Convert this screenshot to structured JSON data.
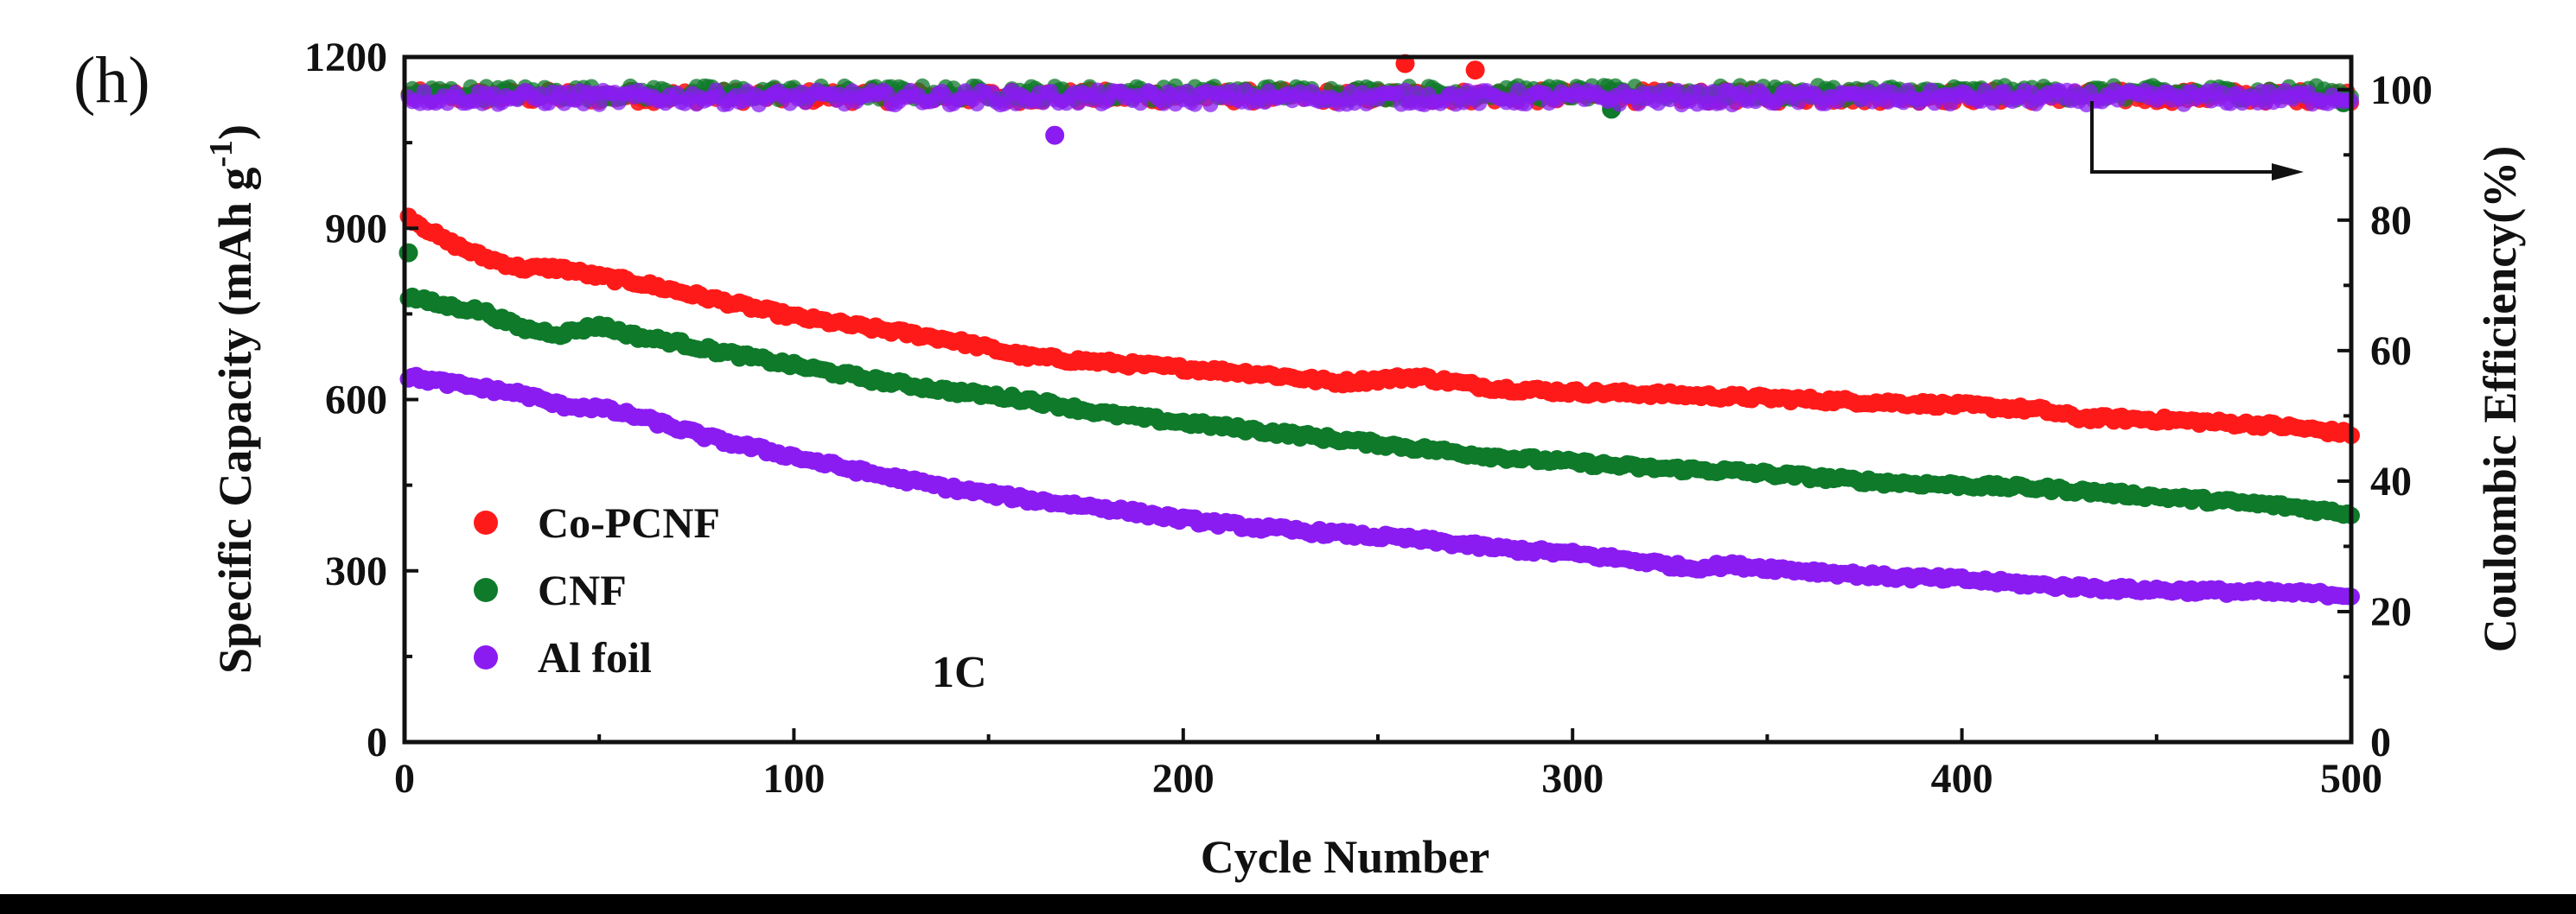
{
  "chart_data": {
    "type": "scatter",
    "panel_label": "(h)",
    "xlabel": "Cycle Number",
    "ylabel_left": "Specific Capacity (mAh g",
    "ylabel_left_sup": "-1",
    "ylabel_left_close": ")",
    "ylabel_right": "Coulombic Efficiency(%)",
    "annotation": "1C",
    "xlim": [
      0,
      500
    ],
    "ylim_left": [
      0,
      1200
    ],
    "ylim_right": [
      0,
      105
    ],
    "x_ticks": [
      "0",
      "100",
      "200",
      "300",
      "400",
      "500"
    ],
    "y_left_ticks": [
      "0",
      "300",
      "600",
      "900",
      "1200"
    ],
    "y_right_ticks": [
      "0",
      "20",
      "40",
      "60",
      "80",
      "100"
    ],
    "legend_position": "bottom-left",
    "grid": false,
    "series": [
      {
        "name": "Co-PCNF",
        "color": "#ff1a1a",
        "capacity": {
          "x": [
            1,
            10,
            20,
            30,
            40,
            50,
            60,
            70,
            80,
            90,
            100,
            120,
            140,
            150,
            160,
            180,
            200,
            220,
            240,
            260,
            280,
            300,
            320,
            340,
            360,
            380,
            400,
            420,
            430,
            450,
            480,
            500
          ],
          "y": [
            920,
            880,
            850,
            830,
            830,
            815,
            805,
            790,
            775,
            760,
            745,
            725,
            705,
            690,
            675,
            665,
            655,
            645,
            630,
            640,
            620,
            613,
            610,
            605,
            600,
            595,
            590,
            582,
            568,
            565,
            555,
            540
          ]
        },
        "efficiency": {
          "mean": 99,
          "outliers": [
            [
              257,
              104
            ],
            [
              275,
              103
            ]
          ]
        }
      },
      {
        "name": "CNF",
        "color": "#0e7a2a",
        "capacity": {
          "x": [
            1,
            10,
            20,
            30,
            40,
            50,
            60,
            70,
            80,
            100,
            120,
            140,
            160,
            180,
            200,
            220,
            240,
            260,
            280,
            300,
            320,
            340,
            360,
            380,
            400,
            420,
            440,
            460,
            480,
            500
          ],
          "y": [
            780,
            765,
            755,
            725,
            715,
            730,
            710,
            700,
            685,
            660,
            635,
            615,
            600,
            575,
            560,
            545,
            530,
            515,
            500,
            490,
            480,
            475,
            465,
            455,
            450,
            445,
            435,
            425,
            415,
            400
          ]
        },
        "efficiency": {
          "mean": 99.5,
          "outliers": [
            [
              1,
              75
            ],
            [
              310,
              97
            ],
            [
              498,
              98
            ]
          ]
        }
      },
      {
        "name": "Al foil",
        "color": "#8a1cf2",
        "capacity": {
          "x": [
            1,
            10,
            20,
            30,
            40,
            50,
            60,
            70,
            80,
            100,
            120,
            140,
            160,
            180,
            200,
            220,
            240,
            260,
            280,
            300,
            320,
            330,
            340,
            360,
            380,
            400,
            420,
            440,
            460,
            480,
            500
          ],
          "y": [
            640,
            630,
            620,
            610,
            590,
            585,
            570,
            550,
            530,
            500,
            470,
            445,
            425,
            410,
            390,
            375,
            365,
            355,
            340,
            330,
            315,
            305,
            310,
            300,
            290,
            285,
            275,
            268,
            265,
            262,
            258
          ]
        },
        "efficiency": {
          "mean": 98.8,
          "outliers": [
            [
              167,
              93
            ]
          ]
        }
      }
    ]
  }
}
